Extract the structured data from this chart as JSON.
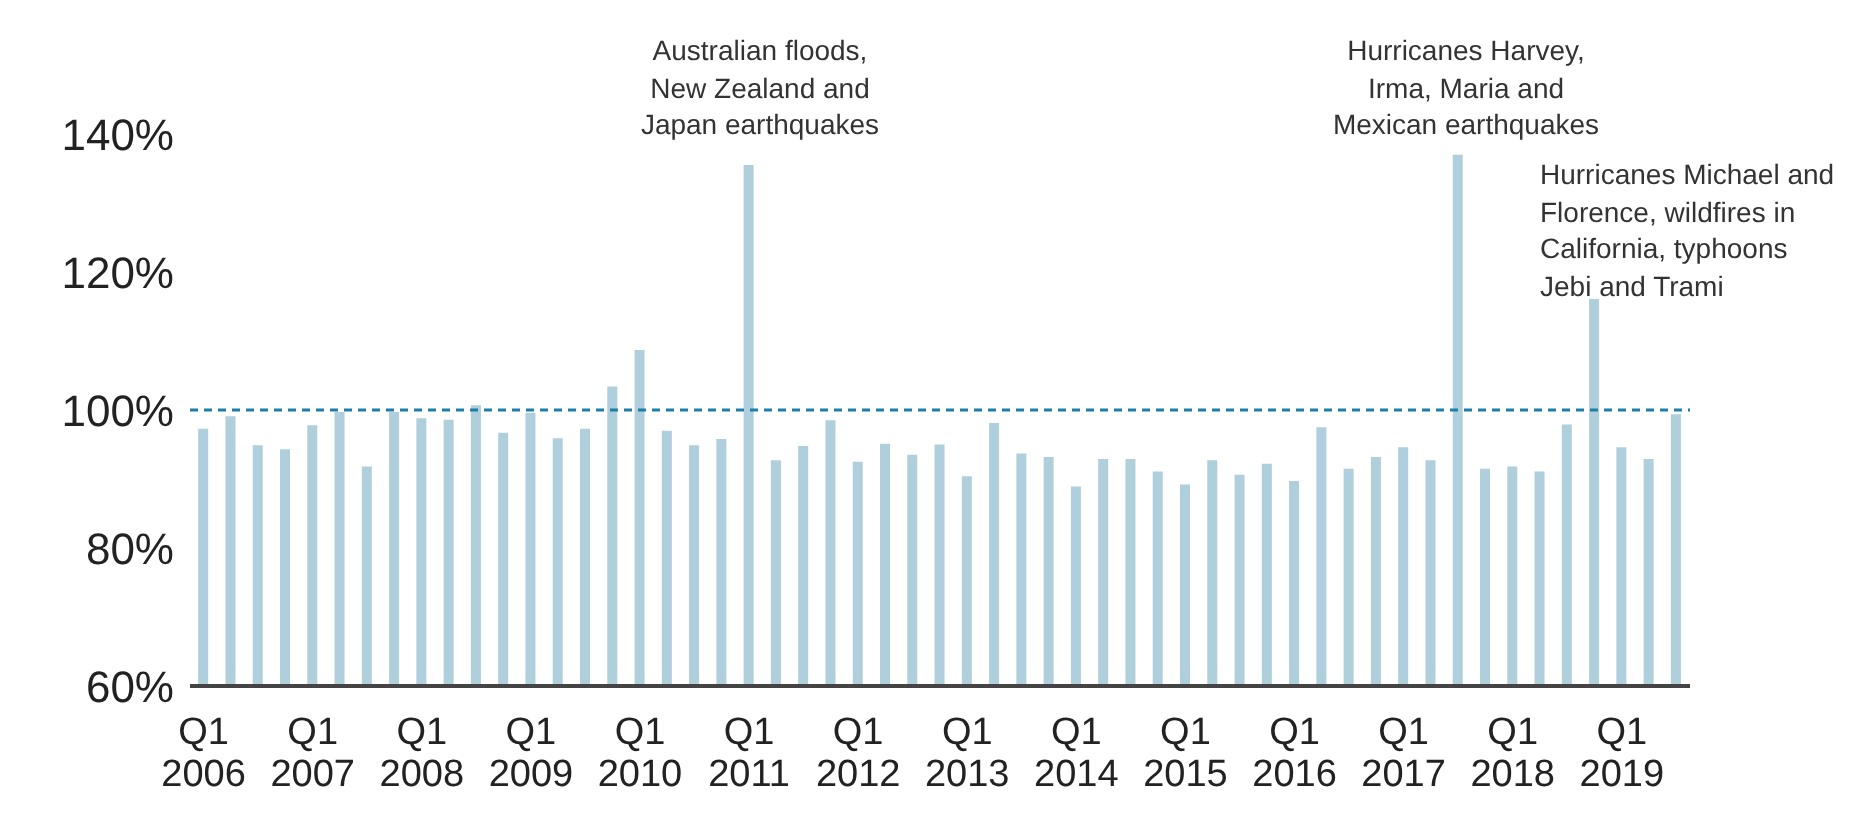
{
  "chart_data": {
    "type": "bar",
    "categories": [
      "Q1 2006",
      null,
      null,
      null,
      "Q1 2007",
      null,
      null,
      null,
      "Q1 2008",
      null,
      null,
      null,
      "Q1 2009",
      null,
      null,
      null,
      "Q1 2010",
      null,
      null,
      null,
      "Q1 2011",
      null,
      null,
      null,
      "Q1 2012",
      null,
      null,
      null,
      "Q1 2013",
      null,
      null,
      null,
      "Q1 2014",
      null,
      null,
      null,
      "Q1 2015",
      null,
      null,
      null,
      "Q1 2016",
      null,
      null,
      null,
      "Q1 2017",
      null,
      null,
      null,
      "Q1 2018",
      null,
      null,
      null,
      "Q1 2019",
      null,
      null
    ],
    "values": [
      97.3,
      99.1,
      94.9,
      94.3,
      97.8,
      99.7,
      91.8,
      99.7,
      98.8,
      98.6,
      100.7,
      96.7,
      99.6,
      95.9,
      97.3,
      103.4,
      108.7,
      97.0,
      94.9,
      95.8,
      135.5,
      92.7,
      94.8,
      98.5,
      92.5,
      95.1,
      93.5,
      95.0,
      90.4,
      98.1,
      93.7,
      93.2,
      88.9,
      92.9,
      92.9,
      91.1,
      89.2,
      92.7,
      90.6,
      92.2,
      89.7,
      97.5,
      91.5,
      93.2,
      94.6,
      92.7,
      137.0,
      91.5,
      91.8,
      91.1,
      97.9,
      116.1,
      94.6,
      92.9,
      99.4
    ],
    "color": "#aecfdb",
    "ylim": [
      60,
      140
    ],
    "yticks": [
      {
        "value": 60,
        "label": "60%"
      },
      {
        "value": 80,
        "label": "80%"
      },
      {
        "value": 100,
        "label": "100%"
      },
      {
        "value": 120,
        "label": "120%"
      },
      {
        "value": 140,
        "label": "140%"
      }
    ],
    "ref_lines": [
      {
        "axis": "y",
        "value": 100,
        "color": "#1f7ea8",
        "line_style": "dashed"
      }
    ],
    "annotations": [
      "Australian floods,\nNew Zealand and\nJapan earthquakes",
      "Hurricanes Harvey,\nIrma, Maria and\nMexican earthquakes",
      "Hurricanes Michael and\nFlorence, wildfires in\nCalifornia, typhoons\nJebi and Trami"
    ],
    "grid": false,
    "legend": false
  }
}
